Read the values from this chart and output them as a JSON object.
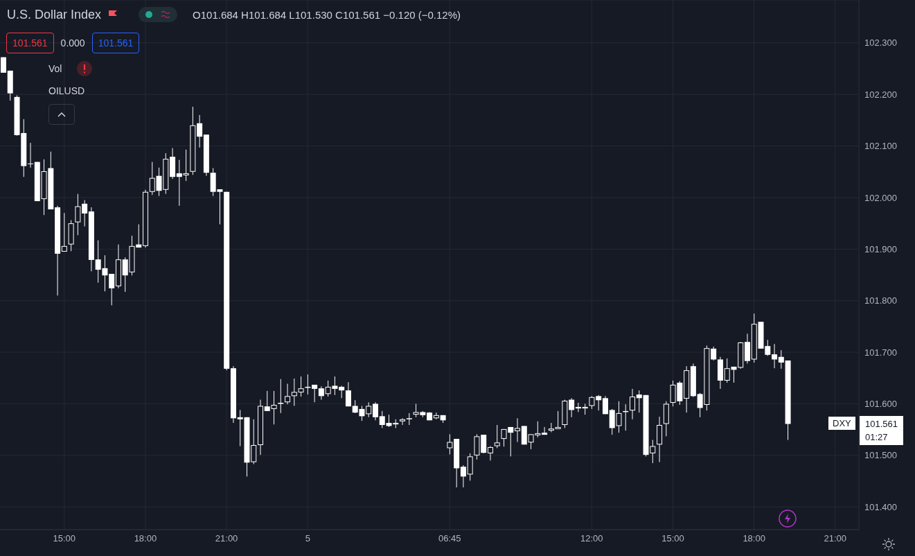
{
  "chart_data": {
    "type": "candlestick",
    "title": "U.S. Dollar Index",
    "color": "#ffffff",
    "grid": true,
    "annotations": [
      "O101.684 H101.684 L101.530 C101.561 −0.120 (−0.12%)",
      "101.561",
      "0.000",
      "101.561",
      "Vol",
      "OILUSD",
      "DXY",
      "101.561",
      "01:27"
    ],
    "categories": [
      null,
      null,
      null,
      null,
      null,
      null,
      null,
      null,
      null,
      "15:00",
      null,
      null,
      null,
      null,
      null,
      null,
      null,
      null,
      null,
      null,
      null,
      "18:00",
      null,
      null,
      null,
      null,
      null,
      null,
      null,
      null,
      null,
      null,
      null,
      "21:00",
      null,
      null,
      null,
      null,
      null,
      null,
      null,
      null,
      null,
      null,
      null,
      "5",
      null,
      null,
      null,
      null,
      null,
      null,
      null,
      null,
      null,
      null,
      null,
      null,
      null,
      null,
      null,
      null,
      null,
      null,
      null,
      null,
      "06:45",
      null,
      null,
      null,
      null,
      null,
      null,
      null,
      null,
      null,
      null,
      null,
      null,
      null,
      null,
      null,
      null,
      null,
      null,
      null,
      null,
      "12:00",
      null,
      null,
      null,
      null,
      null,
      null,
      null,
      null,
      null,
      null,
      null,
      "15:00",
      null,
      null,
      null,
      null,
      null,
      null,
      null,
      null,
      null,
      null,
      null,
      "18:00",
      null,
      null,
      null,
      null,
      null,
      null,
      null,
      null,
      null,
      null,
      null,
      "21:00",
      null,
      null,
      null
    ],
    "ylim": [
      101.356,
      102.383
    ],
    "yticks": [
      {
        "value": 101.4,
        "label": "101.400"
      },
      {
        "value": 101.5,
        "label": "101.500"
      },
      {
        "value": 101.6,
        "label": "101.600"
      },
      {
        "value": 101.7,
        "label": "101.700"
      },
      {
        "value": 101.8,
        "label": "101.800"
      },
      {
        "value": 101.9,
        "label": "101.900"
      },
      {
        "value": 102.0,
        "label": "102.000"
      },
      {
        "value": 102.1,
        "label": "102.100"
      },
      {
        "value": 102.2,
        "label": "102.200"
      },
      {
        "value": 102.3,
        "label": "102.300"
      }
    ],
    "ohlc": [
      [
        102.272,
        102.272,
        102.242,
        102.242
      ],
      [
        102.246,
        102.246,
        102.188,
        102.202
      ],
      [
        102.195,
        102.198,
        102.12,
        102.121
      ],
      [
        102.125,
        102.152,
        102.04,
        102.061
      ],
      [
        102.066,
        102.106,
        102.058,
        102.065
      ],
      [
        102.069,
        102.069,
        101.993,
        101.993
      ],
      [
        101.997,
        102.074,
        101.966,
        102.051
      ],
      [
        102.057,
        102.089,
        101.977,
        101.977
      ],
      [
        101.981,
        101.984,
        101.81,
        101.891
      ],
      [
        101.895,
        101.97,
        101.895,
        101.906
      ],
      [
        101.909,
        101.956,
        101.896,
        101.95
      ],
      [
        101.952,
        102.007,
        101.927,
        101.983
      ],
      [
        101.988,
        101.995,
        101.944,
        101.969
      ],
      [
        101.973,
        101.981,
        101.857,
        101.879
      ],
      [
        101.88,
        101.917,
        101.835,
        101.86
      ],
      [
        101.863,
        101.888,
        101.818,
        101.849
      ],
      [
        101.852,
        101.852,
        101.791,
        101.824
      ],
      [
        101.828,
        101.909,
        101.824,
        101.88
      ],
      [
        101.88,
        101.884,
        101.817,
        101.849
      ],
      [
        101.855,
        101.926,
        101.849,
        101.906
      ],
      [
        101.909,
        101.948,
        101.903,
        101.903
      ],
      [
        101.906,
        102.015,
        101.903,
        102.011
      ],
      [
        102.011,
        102.069,
        102.005,
        102.038
      ],
      [
        102.042,
        102.058,
        102.003,
        102.013
      ],
      [
        102.015,
        102.086,
        102.007,
        102.075
      ],
      [
        102.079,
        102.096,
        102.036,
        102.04
      ],
      [
        102.047,
        102.073,
        101.984,
        102.04
      ],
      [
        102.043,
        102.093,
        102.032,
        102.047
      ],
      [
        102.05,
        102.176,
        102.044,
        102.14
      ],
      [
        102.144,
        102.16,
        102.097,
        102.118
      ],
      [
        102.122,
        102.122,
        102.042,
        102.048
      ],
      [
        102.048,
        102.057,
        102.003,
        102.011
      ],
      [
        102.016,
        102.016,
        101.948,
        102.011
      ],
      [
        102.011,
        102.011,
        101.665,
        101.668
      ],
      [
        101.669,
        101.673,
        101.563,
        101.572
      ],
      [
        101.574,
        101.588,
        101.518,
        101.57
      ],
      [
        101.574,
        101.574,
        101.459,
        101.486
      ],
      [
        101.487,
        101.57,
        101.483,
        101.52
      ],
      [
        101.52,
        101.608,
        101.501,
        101.596
      ],
      [
        101.595,
        101.625,
        101.586,
        101.586
      ],
      [
        101.59,
        101.625,
        101.56,
        101.598
      ],
      [
        101.6,
        101.648,
        101.582,
        101.602
      ],
      [
        101.603,
        101.639,
        101.599,
        101.615
      ],
      [
        101.615,
        101.649,
        101.596,
        101.623
      ],
      [
        101.622,
        101.653,
        101.614,
        101.63
      ],
      [
        101.631,
        101.657,
        101.618,
        101.633
      ],
      [
        101.637,
        101.637,
        101.603,
        101.629
      ],
      [
        101.63,
        101.634,
        101.608,
        101.615
      ],
      [
        101.619,
        101.645,
        101.614,
        101.633
      ],
      [
        101.635,
        101.653,
        101.617,
        101.629
      ],
      [
        101.633,
        101.635,
        101.611,
        101.626
      ],
      [
        101.626,
        101.642,
        101.595,
        101.595
      ],
      [
        101.596,
        101.607,
        101.582,
        101.583
      ],
      [
        101.59,
        101.596,
        101.567,
        101.576
      ],
      [
        101.58,
        101.603,
        101.574,
        101.596
      ],
      [
        101.6,
        101.603,
        101.568,
        101.574
      ],
      [
        101.576,
        101.586,
        101.553,
        101.559
      ],
      [
        101.563,
        101.579,
        101.555,
        101.557
      ],
      [
        101.56,
        101.57,
        101.553,
        101.563
      ],
      [
        101.566,
        101.572,
        101.559,
        101.57
      ],
      [
        101.571,
        101.582,
        101.559,
        101.572
      ],
      [
        101.579,
        101.6,
        101.574,
        101.584
      ],
      [
        101.584,
        101.586,
        101.574,
        101.578
      ],
      [
        101.583,
        101.584,
        101.568,
        101.568
      ],
      [
        101.572,
        101.583,
        101.57,
        101.578
      ],
      [
        101.578,
        101.578,
        101.563,
        101.568
      ],
      [
        101.514,
        101.541,
        101.502,
        101.526
      ],
      [
        101.532,
        101.532,
        101.438,
        101.475
      ],
      [
        101.478,
        101.481,
        101.438,
        101.459
      ],
      [
        101.463,
        101.504,
        101.451,
        101.498
      ],
      [
        101.5,
        101.541,
        101.492,
        101.537
      ],
      [
        101.54,
        101.54,
        101.504,
        101.505
      ],
      [
        101.504,
        101.518,
        101.49,
        101.516
      ],
      [
        101.518,
        101.559,
        101.514,
        101.525
      ],
      [
        101.532,
        101.551,
        101.517,
        101.551
      ],
      [
        101.555,
        101.555,
        101.498,
        101.544
      ],
      [
        101.547,
        101.572,
        101.526,
        101.553
      ],
      [
        101.557,
        101.557,
        101.521,
        101.521
      ],
      [
        101.525,
        101.541,
        101.512,
        101.541
      ],
      [
        101.539,
        101.566,
        101.535,
        101.543
      ],
      [
        101.544,
        101.555,
        101.54,
        101.54
      ],
      [
        101.548,
        101.563,
        101.545,
        101.552
      ],
      [
        101.551,
        101.586,
        101.551,
        101.555
      ],
      [
        101.559,
        101.608,
        101.553,
        101.606
      ],
      [
        101.608,
        101.611,
        101.574,
        101.588
      ],
      [
        101.594,
        101.602,
        101.584,
        101.591
      ],
      [
        101.591,
        101.6,
        101.579,
        101.594
      ],
      [
        101.596,
        101.615,
        101.59,
        101.613
      ],
      [
        101.615,
        101.617,
        101.587,
        101.607
      ],
      [
        101.611,
        101.615,
        101.58,
        101.58
      ],
      [
        101.588,
        101.59,
        101.54,
        101.553
      ],
      [
        101.557,
        101.605,
        101.544,
        101.582
      ],
      [
        101.584,
        101.599,
        101.548,
        101.586
      ],
      [
        101.587,
        101.629,
        101.57,
        101.614
      ],
      [
        101.618,
        101.626,
        101.583,
        101.611
      ],
      [
        101.617,
        101.617,
        101.498,
        101.501
      ],
      [
        101.504,
        101.53,
        101.485,
        101.518
      ],
      [
        101.521,
        101.575,
        101.487,
        101.559
      ],
      [
        101.561,
        101.605,
        101.537,
        101.6
      ],
      [
        101.602,
        101.645,
        101.595,
        101.637
      ],
      [
        101.641,
        101.644,
        101.598,
        101.605
      ],
      [
        101.61,
        101.673,
        101.583,
        101.665
      ],
      [
        101.673,
        101.678,
        101.613,
        101.615
      ],
      [
        101.619,
        101.621,
        101.574,
        101.592
      ],
      [
        101.598,
        101.713,
        101.587,
        101.708
      ],
      [
        101.707,
        101.711,
        101.684,
        101.686
      ],
      [
        101.686,
        101.691,
        101.629,
        101.645
      ],
      [
        101.645,
        101.688,
        101.641,
        101.669
      ],
      [
        101.672,
        101.672,
        101.641,
        101.666
      ],
      [
        101.67,
        101.72,
        101.668,
        101.719
      ],
      [
        101.72,
        101.736,
        101.678,
        101.683
      ],
      [
        101.686,
        101.775,
        101.68,
        101.755
      ],
      [
        101.759,
        101.759,
        101.707,
        101.707
      ],
      [
        101.712,
        101.724,
        101.693,
        101.695
      ],
      [
        101.696,
        101.716,
        101.669,
        101.686
      ],
      [
        101.691,
        101.704,
        101.668,
        101.68
      ],
      [
        101.684,
        101.684,
        101.53,
        101.561
      ],
      null,
      null,
      null,
      null,
      null,
      null,
      null,
      null,
      null,
      null
    ]
  }
}
